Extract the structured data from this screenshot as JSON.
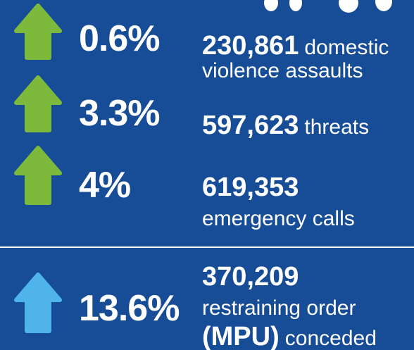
{
  "items": [
    {
      "change": "0.6%",
      "color": "#7dba3c",
      "lines": [
        [
          {
            "text": "230,861",
            "bold": true
          },
          {
            "text": "domestic",
            "bold": false
          }
        ],
        [
          {
            "text": "violence assaults",
            "bold": false
          }
        ]
      ]
    },
    {
      "change": "3.3%",
      "color": "#7dba3c",
      "lines": [
        [
          {
            "text": "597,623",
            "bold": true
          },
          {
            "text": "threats",
            "bold": false
          }
        ]
      ]
    },
    {
      "change": "4%",
      "color": "#7dba3c",
      "lines": [
        [
          {
            "text": "619,353",
            "bold": true
          }
        ],
        [
          {
            "text": "emergency calls",
            "bold": false
          }
        ]
      ]
    },
    {
      "change": "13.6%",
      "color": "#4fb4ea",
      "lines": [
        [
          {
            "text": "370,209",
            "bold": true
          }
        ],
        [
          {
            "text": "restraining order",
            "bold": false
          }
        ],
        [
          {
            "text": "(MPU)",
            "bold": true
          },
          {
            "text": "conceded",
            "bold": false
          }
        ]
      ]
    }
  ]
}
